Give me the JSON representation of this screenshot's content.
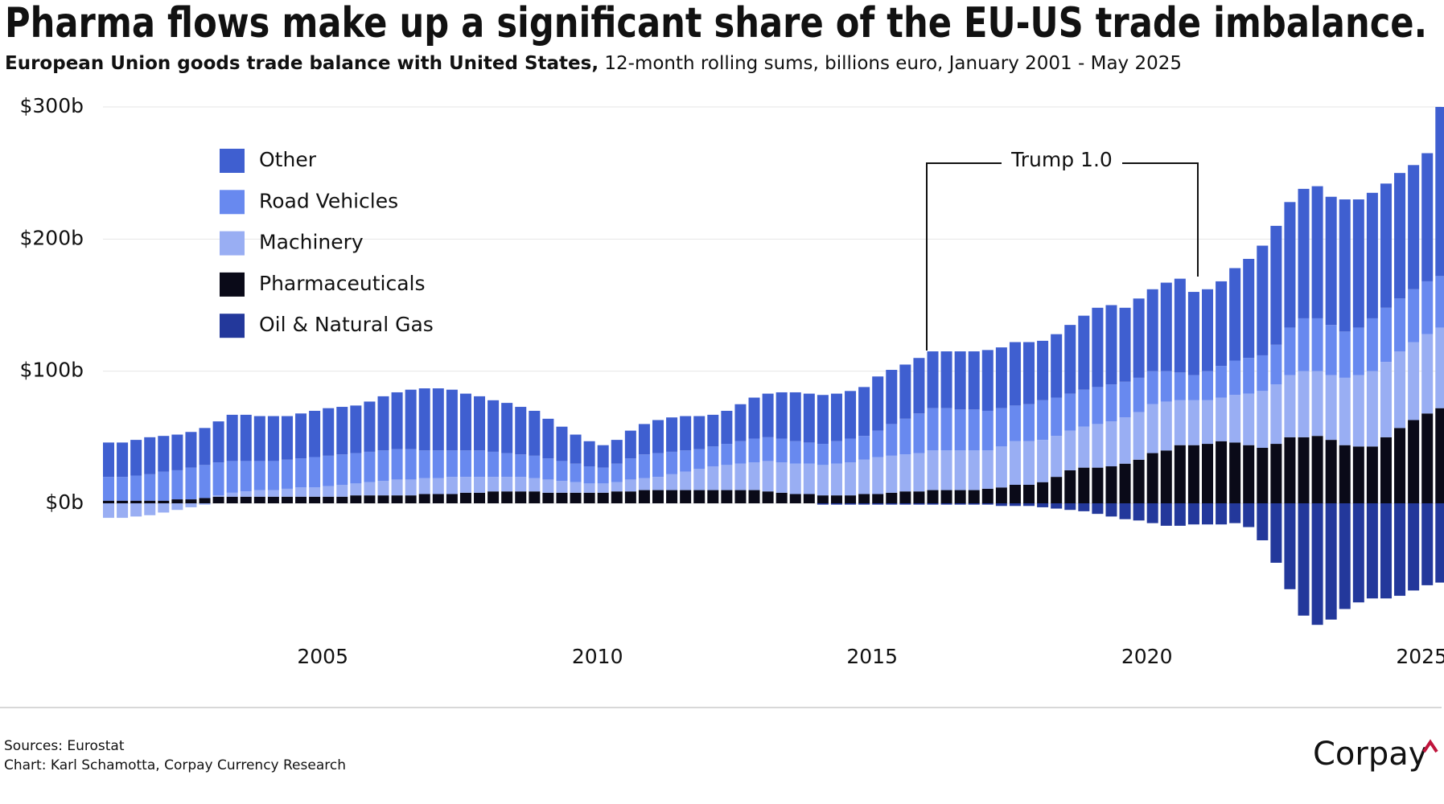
{
  "chart_data": {
    "type": "stacked-bar",
    "title": "Pharma flows make up a significant share of the EU-US trade imbalance.",
    "subtitle_bold": "European Union goods trade balance with United States,",
    "subtitle": "12-month rolling sums, billions euro, January 2001 - May 2025",
    "annotations": [
      {
        "text": "Trump 1.0"
      }
    ],
    "sources": "Sources: Eurostat",
    "credit": "Chart: Karl Schamotta, Corpay Currency Research",
    "brand": "Corpay",
    "xlim": [
      2001,
      2025.42
    ],
    "xticks": [
      2005,
      2010,
      2015,
      2020,
      2025
    ],
    "ylim": [
      -100,
      300
    ],
    "yticks": [
      {
        "value": 0,
        "label": "$0b"
      },
      {
        "value": 100,
        "label": "$100b"
      },
      {
        "value": 200,
        "label": "$200b"
      },
      {
        "value": 300,
        "label": "$300b"
      }
    ],
    "grid": true,
    "legend": "upper left",
    "x": [
      2001,
      2001.25,
      2001.5,
      2001.75,
      2002,
      2002.25,
      2002.5,
      2002.75,
      2003,
      2003.25,
      2003.5,
      2003.75,
      2004,
      2004.25,
      2004.5,
      2004.75,
      2005,
      2005.25,
      2005.5,
      2005.75,
      2006,
      2006.25,
      2006.5,
      2006.75,
      2007,
      2007.25,
      2007.5,
      2007.75,
      2008,
      2008.25,
      2008.5,
      2008.75,
      2009,
      2009.25,
      2009.5,
      2009.75,
      2010,
      2010.25,
      2010.5,
      2010.75,
      2011,
      2011.25,
      2011.5,
      2011.75,
      2012,
      2012.25,
      2012.5,
      2012.75,
      2013,
      2013.25,
      2013.5,
      2013.75,
      2014,
      2014.25,
      2014.5,
      2014.75,
      2015,
      2015.25,
      2015.5,
      2015.75,
      2016,
      2016.25,
      2016.5,
      2016.75,
      2017,
      2017.25,
      2017.5,
      2017.75,
      2018,
      2018.25,
      2018.5,
      2018.75,
      2019,
      2019.25,
      2019.5,
      2019.75,
      2020,
      2020.25,
      2020.5,
      2020.75,
      2021,
      2021.25,
      2021.5,
      2021.75,
      2022,
      2022.25,
      2022.5,
      2022.75,
      2023,
      2023.25,
      2023.5,
      2023.75,
      2024,
      2024.25,
      2024.5,
      2024.75,
      2025,
      2025.25
    ],
    "series": [
      {
        "name": "Other",
        "color": "#3f5fd0",
        "values": [
          26,
          26,
          27,
          28,
          27,
          27,
          27,
          28,
          31,
          35,
          35,
          34,
          34,
          33,
          34,
          35,
          36,
          36,
          36,
          38,
          41,
          43,
          45,
          47,
          47,
          46,
          43,
          41,
          39,
          38,
          36,
          34,
          30,
          26,
          22,
          19,
          17,
          18,
          21,
          23,
          25,
          26,
          26,
          25,
          24,
          25,
          28,
          31,
          33,
          35,
          37,
          37,
          37,
          36,
          36,
          37,
          41,
          41,
          41,
          42,
          43,
          43,
          44,
          44,
          46,
          46,
          48,
          47,
          45,
          48,
          52,
          56,
          60,
          60,
          56,
          60,
          62,
          67,
          71,
          63,
          62,
          64,
          70,
          75,
          83,
          90,
          95,
          98,
          100,
          97,
          100,
          97,
          95,
          94,
          95,
          94,
          97,
          128
        ]
      },
      {
        "name": "Road Vehicles",
        "color": "#6889ef",
        "values": [
          18,
          18,
          19,
          20,
          22,
          22,
          24,
          25,
          25,
          24,
          23,
          22,
          22,
          22,
          22,
          23,
          23,
          23,
          23,
          23,
          23,
          23,
          23,
          21,
          21,
          20,
          20,
          20,
          19,
          18,
          17,
          17,
          16,
          15,
          14,
          13,
          12,
          14,
          16,
          18,
          18,
          17,
          16,
          15,
          15,
          16,
          17,
          18,
          18,
          18,
          17,
          16,
          16,
          17,
          18,
          18,
          20,
          24,
          27,
          30,
          32,
          32,
          31,
          31,
          30,
          29,
          27,
          28,
          30,
          29,
          28,
          28,
          28,
          28,
          27,
          26,
          25,
          23,
          21,
          19,
          22,
          24,
          26,
          27,
          27,
          30,
          36,
          40,
          40,
          38,
          35,
          36,
          40,
          41,
          40,
          40,
          40,
          39
        ]
      },
      {
        "name": "Machinery",
        "color": "#99aef3",
        "values": [
          -11,
          -11,
          -10,
          -9,
          -7,
          -5,
          -3,
          -1,
          1,
          3,
          4,
          5,
          5,
          6,
          7,
          7,
          8,
          9,
          9,
          10,
          11,
          12,
          12,
          12,
          12,
          13,
          12,
          12,
          11,
          11,
          11,
          10,
          10,
          9,
          8,
          7,
          7,
          7,
          9,
          9,
          10,
          12,
          14,
          16,
          18,
          19,
          20,
          21,
          23,
          23,
          23,
          23,
          23,
          24,
          25,
          26,
          28,
          28,
          28,
          29,
          30,
          30,
          30,
          30,
          29,
          31,
          33,
          33,
          32,
          31,
          30,
          31,
          33,
          34,
          35,
          36,
          37,
          37,
          34,
          34,
          33,
          33,
          36,
          39,
          43,
          45,
          47,
          50,
          49,
          49,
          51,
          54,
          57,
          57,
          58,
          59,
          60,
          61
        ]
      },
      {
        "name": "Pharmaceuticals",
        "color": "#0a0a18",
        "values": [
          2,
          2,
          2,
          2,
          2,
          3,
          3,
          4,
          5,
          5,
          5,
          5,
          5,
          5,
          5,
          5,
          5,
          5,
          6,
          6,
          6,
          6,
          6,
          7,
          7,
          7,
          8,
          8,
          9,
          9,
          9,
          9,
          8,
          8,
          8,
          8,
          8,
          9,
          9,
          10,
          10,
          10,
          10,
          10,
          10,
          10,
          10,
          10,
          9,
          8,
          7,
          7,
          6,
          6,
          6,
          7,
          7,
          8,
          9,
          9,
          10,
          10,
          10,
          10,
          11,
          12,
          14,
          14,
          16,
          20,
          25,
          27,
          27,
          28,
          30,
          33,
          38,
          40,
          44,
          44,
          45,
          47,
          46,
          44,
          42,
          45,
          50,
          50,
          51,
          48,
          44,
          43,
          43,
          50,
          57,
          63,
          68,
          72
        ]
      },
      {
        "name": "Oil & Natural Gas",
        "color": "#23389b",
        "values": [
          0,
          0,
          0,
          0,
          0,
          0,
          0,
          0,
          0,
          0,
          0,
          0,
          0,
          0,
          0,
          0,
          0,
          0,
          0,
          0,
          0,
          0,
          0,
          0,
          0,
          0,
          0,
          0,
          0,
          0,
          0,
          0,
          0,
          0,
          0,
          0,
          0,
          0,
          0,
          0,
          0,
          0,
          0,
          0,
          0,
          0,
          0,
          0,
          0,
          0,
          0,
          0,
          -1,
          -1,
          -1,
          -1,
          -1,
          -1,
          -1,
          -1,
          -1,
          -1,
          -1,
          -1,
          -1,
          -2,
          -2,
          -2,
          -3,
          -4,
          -5,
          -6,
          -8,
          -10,
          -12,
          -13,
          -15,
          -17,
          -17,
          -16,
          -16,
          -16,
          -15,
          -18,
          -28,
          -45,
          -65,
          -85,
          -92,
          -88,
          -80,
          -75,
          -72,
          -72,
          -70,
          -66,
          -62,
          -60
        ]
      }
    ]
  }
}
